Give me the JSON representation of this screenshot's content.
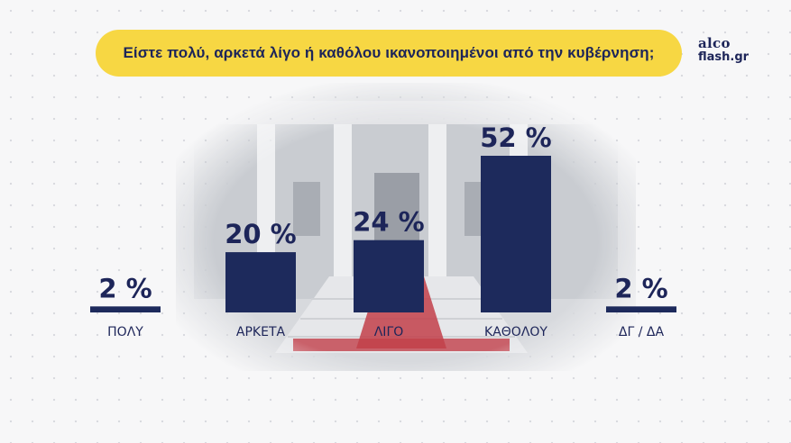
{
  "title": "Είστε πολύ, αρκετά λίγο ή καθόλου ικανοποιημένοι από την κυβέρνηση;",
  "logo": {
    "line1": "alco",
    "line2": "flash.gr"
  },
  "colors": {
    "bar": "#1d2a5c",
    "title_bg": "#f7d743",
    "text": "#1d2559",
    "carpet": "#c2404a"
  },
  "chart_data": {
    "type": "bar",
    "title": "Είστε πολύ, αρκετά λίγο ή καθόλου ικανοποιημένοι από την κυβέρνηση;",
    "categories": [
      "ΠΟΛΥ",
      "ΑΡΚΕΤΑ",
      "ΛΙΓΟ",
      "ΚΑΘΟΛΟΥ",
      "ΔΓ / ΔΑ"
    ],
    "values": [
      2,
      20,
      24,
      52,
      2
    ],
    "value_labels": [
      "2 %",
      "20 %",
      "24 %",
      "52 %",
      "2 %"
    ],
    "xlabel": "",
    "ylabel": "",
    "ylim": [
      0,
      52
    ],
    "grid": false,
    "legend": "none"
  }
}
